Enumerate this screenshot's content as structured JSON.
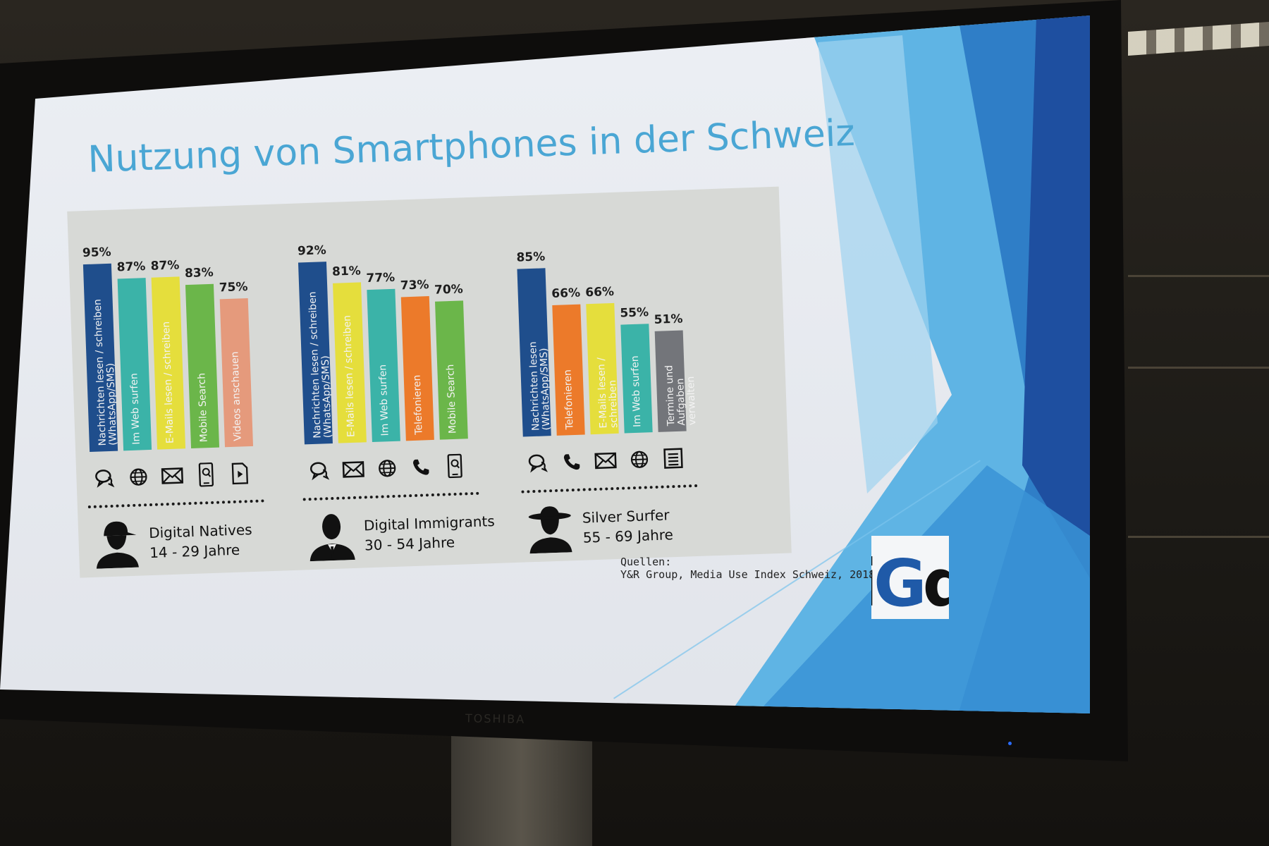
{
  "slide": {
    "title": "Nutzung von Smartphones in der Schweiz",
    "source_heading": "Quellen:",
    "source_text": "Y&R Group, Media Use Index Schweiz, 2018",
    "logo_text": "iGd"
  },
  "tv": {
    "brand": "TOSHIBA"
  },
  "chart_data": {
    "type": "bar",
    "title": "Nutzung von Smartphones in der Schweiz",
    "groups": [
      {
        "name": "Digital Natives",
        "age": "14 - 29 Jahre",
        "bars": [
          {
            "label": "Nachrichten lesen / schreiben\n(WhatsApp/SMS)",
            "value": 95,
            "color": "#1f4e8c",
            "icon": "chat-icon"
          },
          {
            "label": "Im Web surfen",
            "value": 87,
            "color": "#3bb3a8",
            "icon": "globe-icon"
          },
          {
            "label": "E-Mails lesen / schreiben",
            "value": 87,
            "color": "#e5de3c",
            "icon": "mail-icon"
          },
          {
            "label": "Mobile Search",
            "value": 83,
            "color": "#6bb64a",
            "icon": "phone-search-icon"
          },
          {
            "label": "Videos anschauen",
            "value": 75,
            "color": "#e59a7c",
            "icon": "video-file-icon"
          }
        ]
      },
      {
        "name": "Digital Immigrants",
        "age": "30 - 54 Jahre",
        "bars": [
          {
            "label": "Nachrichten lesen / schreiben\n(WhatsApp/SMS)",
            "value": 92,
            "color": "#1f4e8c",
            "icon": "chat-icon"
          },
          {
            "label": "E-Mails lesen / schreiben",
            "value": 81,
            "color": "#e5de3c",
            "icon": "mail-icon"
          },
          {
            "label": "Im Web surfen",
            "value": 77,
            "color": "#3bb3a8",
            "icon": "globe-icon"
          },
          {
            "label": "Telefonieren",
            "value": 73,
            "color": "#ec7a2a",
            "icon": "phone-icon"
          },
          {
            "label": "Mobile Search",
            "value": 70,
            "color": "#6bb64a",
            "icon": "phone-search-icon"
          }
        ]
      },
      {
        "name": "Silver Surfer",
        "age": "55 - 69 Jahre",
        "bars": [
          {
            "label": "Nachrichten lesen\n(WhatsApp/SMS)",
            "value": 85,
            "color": "#1f4e8c",
            "icon": "chat-icon"
          },
          {
            "label": "Telefonieren",
            "value": 66,
            "color": "#ec7a2a",
            "icon": "phone-icon"
          },
          {
            "label": "E-Mails lesen / schreiben",
            "value": 66,
            "color": "#e5de3c",
            "icon": "mail-icon"
          },
          {
            "label": "Im Web surfen",
            "value": 55,
            "color": "#3bb3a8",
            "icon": "globe-icon"
          },
          {
            "label": "Termine und\nAufgaben verwalten",
            "value": 51,
            "color": "#73757a",
            "icon": "list-icon"
          }
        ]
      }
    ],
    "ylim": [
      0,
      100
    ]
  }
}
